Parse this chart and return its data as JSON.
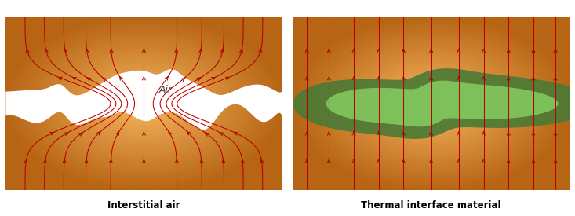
{
  "fig_width": 7.33,
  "fig_height": 2.75,
  "dpi": 100,
  "bg_color": "#ffffff",
  "label_left": "Interstitial air",
  "label_right": "Thermal interface material",
  "air_label": "Air",
  "arrow_color": "#aa0000",
  "line_color": "#bb0000",
  "orange_light": "#f5c080",
  "orange_mid": "#e07830",
  "orange_dark": "#c05010",
  "green_outer": "#4a7a35",
  "green_inner": "#85cc60",
  "label_fontsize": 8.5,
  "label_fontweight": "bold"
}
